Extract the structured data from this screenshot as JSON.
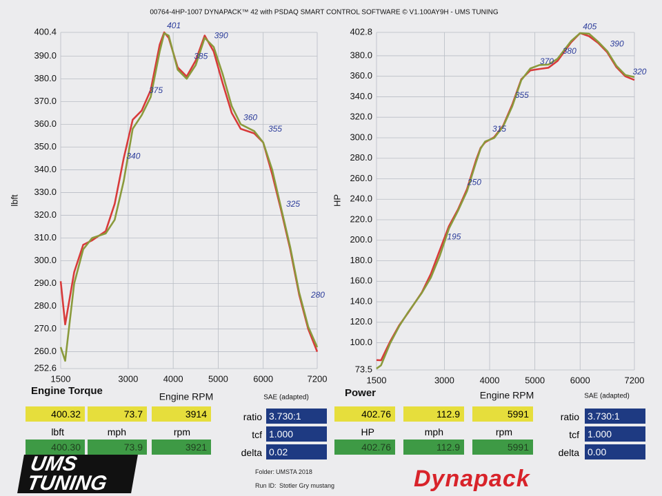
{
  "header": {
    "title": "00764-4HP-1007 DYNAPACK™ 42 with PSDAQ SMART CONTROL SOFTWARE © V1.100AY9H - UMS TUNING"
  },
  "chart_data": [
    {
      "type": "line",
      "title": "Engine Torque",
      "y_label": "lbft",
      "x_label": "Engine RPM",
      "note": "SAE (adapted)",
      "grid": true,
      "xlim": [
        1500,
        7200
      ],
      "xticks": [
        1500,
        3000,
        4000,
        5000,
        6000,
        7200
      ],
      "ylim": [
        252.6,
        400.4
      ],
      "yticks": [
        252.6,
        {
          "value": 260,
          "label": "260.0"
        },
        {
          "value": 270,
          "label": "270.0"
        },
        {
          "value": 280,
          "label": "280.0"
        },
        {
          "value": 290,
          "label": "290.0"
        },
        {
          "value": 300,
          "label": "300.0"
        },
        {
          "value": 310,
          "label": "310.0"
        },
        {
          "value": 320,
          "label": "320.0"
        },
        {
          "value": 330,
          "label": "330.0"
        },
        {
          "value": 340,
          "label": "340.0"
        },
        {
          "value": 350,
          "label": "350.0"
        },
        {
          "value": 360,
          "label": "360.0"
        },
        {
          "value": 370,
          "label": "370.0"
        },
        {
          "value": 380,
          "label": "380.0"
        },
        {
          "value": 390,
          "label": "390.0"
        },
        400.4
      ],
      "x": [
        1500,
        1600,
        1800,
        2000,
        2200,
        2500,
        2700,
        2900,
        3100,
        3300,
        3500,
        3700,
        3800,
        3900,
        4100,
        4300,
        4500,
        4700,
        4900,
        5100,
        5300,
        5500,
        5800,
        6000,
        6200,
        6400,
        6600,
        6800,
        7000,
        7200
      ],
      "series": [
        {
          "color": "#d83a3a",
          "values": [
            291,
            272,
            295,
            307,
            309,
            313,
            325,
            345,
            362,
            366,
            375,
            395,
            400.4,
            398,
            385,
            381,
            388,
            399,
            392,
            378,
            365,
            358,
            356,
            352,
            338,
            322,
            305,
            285,
            270,
            260
          ]
        },
        {
          "color": "#8a9a3c",
          "values": [
            262,
            256,
            290,
            305,
            310,
            312,
            318,
            335,
            358,
            364,
            372,
            392,
            400,
            399,
            384,
            380,
            386,
            398,
            394,
            382,
            368,
            360,
            357,
            352,
            340,
            323,
            306,
            286,
            271,
            262
          ]
        }
      ],
      "annotations": [
        {
          "text": "401",
          "x": 3800,
          "y": 400.4
        },
        {
          "text": "385",
          "x": 4400,
          "y": 387
        },
        {
          "text": "390",
          "x": 4850,
          "y": 396
        },
        {
          "text": "375",
          "x": 3400,
          "y": 372
        },
        {
          "text": "340",
          "x": 2900,
          "y": 343
        },
        {
          "text": "360",
          "x": 5500,
          "y": 360
        },
        {
          "text": "355",
          "x": 6050,
          "y": 355
        },
        {
          "text": "325",
          "x": 6450,
          "y": 322
        },
        {
          "text": "280",
          "x": 7000,
          "y": 282
        }
      ]
    },
    {
      "type": "line",
      "title": "Power",
      "y_label": "HP",
      "x_label": "Engine RPM",
      "note": "SAE (adapted)",
      "grid": true,
      "xlim": [
        1500,
        7200
      ],
      "xticks": [
        1500,
        3000,
        4000,
        5000,
        6000,
        7200
      ],
      "ylim": [
        73.5,
        402.8
      ],
      "yticks": [
        73.5,
        {
          "value": 100,
          "label": "100.0"
        },
        {
          "value": 120,
          "label": "120.0"
        },
        {
          "value": 140,
          "label": "140.0"
        },
        {
          "value": 160,
          "label": "160.0"
        },
        {
          "value": 180,
          "label": "180.0"
        },
        {
          "value": 200,
          "label": "200.0"
        },
        {
          "value": 220,
          "label": "220.0"
        },
        {
          "value": 240,
          "label": "240.0"
        },
        {
          "value": 260,
          "label": "260.0"
        },
        {
          "value": 280,
          "label": "280.0"
        },
        {
          "value": 300,
          "label": "300.0"
        },
        {
          "value": 320,
          "label": "320.0"
        },
        {
          "value": 340,
          "label": "340.0"
        },
        {
          "value": 360,
          "label": "360.0"
        },
        {
          "value": 380,
          "label": "380.0"
        },
        402.8
      ],
      "x": [
        1500,
        1600,
        1800,
        2000,
        2200,
        2500,
        2700,
        2900,
        3100,
        3300,
        3500,
        3700,
        3800,
        3900,
        4100,
        4300,
        4500,
        4700,
        4900,
        5100,
        5300,
        5500,
        5800,
        6000,
        6200,
        6400,
        6600,
        6800,
        7000,
        7200
      ],
      "series": [
        {
          "color": "#d83a3a",
          "values": [
            83.1,
            82.9,
            101.1,
            116.9,
            129.4,
            149.0,
            167.1,
            190.5,
            213.7,
            230.0,
            249.9,
            278.3,
            290.1,
            295.5,
            300.6,
            311.9,
            332.4,
            357.1,
            365.7,
            367.1,
            368.3,
            374.9,
            393.1,
            402.1,
            399.0,
            392.4,
            383.3,
            369.0,
            359.9,
            356.4
          ]
        },
        {
          "color": "#8a9a3c",
          "values": [
            74.8,
            78.0,
            99.4,
            116.1,
            129.9,
            148.5,
            163.5,
            185.0,
            211.3,
            228.7,
            247.9,
            276.2,
            289.4,
            296.3,
            299.8,
            311.1,
            330.7,
            356.2,
            367.6,
            370.9,
            371.4,
            377.0,
            394.3,
            402.1,
            401.4,
            393.6,
            384.5,
            370.3,
            361.2,
            359.2
          ]
        }
      ],
      "annotations": [
        {
          "text": "405",
          "x": 6000,
          "y": 402
        },
        {
          "text": "390",
          "x": 6600,
          "y": 385
        },
        {
          "text": "380",
          "x": 5550,
          "y": 378
        },
        {
          "text": "370",
          "x": 5050,
          "y": 368
        },
        {
          "text": "355",
          "x": 4500,
          "y": 335
        },
        {
          "text": "315",
          "x": 4000,
          "y": 302
        },
        {
          "text": "250",
          "x": 3450,
          "y": 250
        },
        {
          "text": "195",
          "x": 3000,
          "y": 197
        },
        {
          "text": "320",
          "x": 7100,
          "y": 358
        }
      ]
    }
  ],
  "readouts": [
    {
      "yellow": [
        "400.32",
        "73.7",
        "3914"
      ],
      "units": [
        "lbft",
        "mph",
        "rpm"
      ],
      "green": [
        "400.30",
        "73.9",
        "3921"
      ],
      "params": [
        {
          "label": "ratio",
          "value": "3.730:1"
        },
        {
          "label": "tcf",
          "value": "1.000"
        },
        {
          "label": "delta",
          "value": "0.02"
        }
      ]
    },
    {
      "yellow": [
        "402.76",
        "112.9",
        "5991"
      ],
      "units": [
        "HP",
        "mph",
        "rpm"
      ],
      "green": [
        "402.76",
        "112.9",
        "5991"
      ],
      "params": [
        {
          "label": "ratio",
          "value": "3.730:1"
        },
        {
          "label": "tcf",
          "value": "1.000"
        },
        {
          "label": "delta",
          "value": "0.00"
        }
      ]
    }
  ],
  "footer": {
    "folder_label": "Folder:",
    "folder": "UMSTA 2018",
    "run_label": "Run ID:",
    "run": "Stotler Gry mustang",
    "logo_left": "UMS TUNING",
    "logo_right": "Dynapack"
  }
}
